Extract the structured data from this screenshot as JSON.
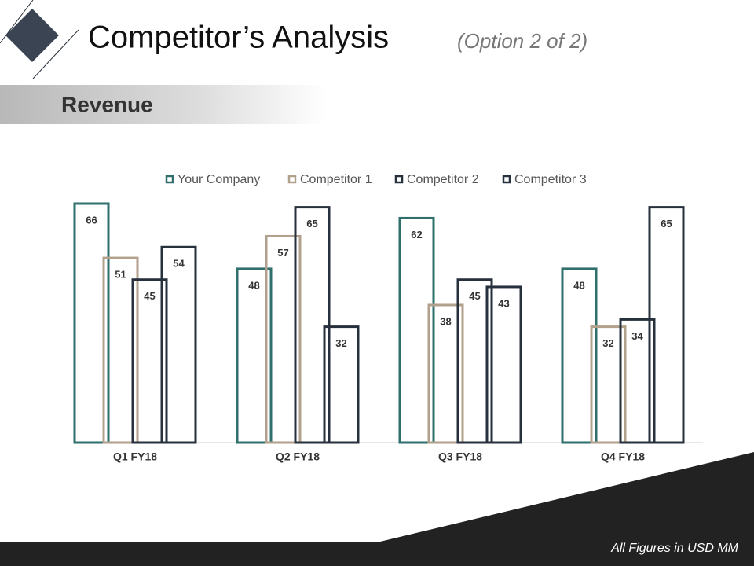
{
  "slide": {
    "title": "Competitor’s Analysis",
    "subtitle": "(Option 2 of 2)",
    "section": "Revenue",
    "footnote": "All Figures in USD MM"
  },
  "chart_data": {
    "type": "bar",
    "categories": [
      "Q1 FY18",
      "Q2 FY18",
      "Q3 FY18",
      "Q4 FY18"
    ],
    "series": [
      {
        "name": "Your Company",
        "color": "#2f6f6c",
        "values": [
          66,
          48,
          62,
          48
        ]
      },
      {
        "name": "Competitor 1",
        "color": "#b1a08c",
        "values": [
          51,
          57,
          38,
          32
        ]
      },
      {
        "name": "Competitor 2",
        "color": "#27303d",
        "values": [
          45,
          65,
          45,
          34
        ]
      },
      {
        "name": "Competitor 3",
        "color": "#27303d",
        "values": [
          54,
          32,
          43,
          65
        ]
      }
    ],
    "ylim": [
      0,
      66
    ],
    "legend": "top"
  }
}
